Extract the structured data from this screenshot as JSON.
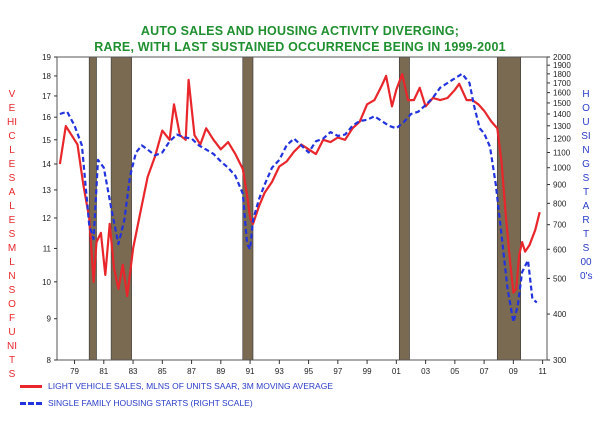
{
  "chart_data": {
    "type": "line",
    "title": [
      "AUTO SALES AND HOUSING ACTIVITY DIVERGING;",
      "RARE, WITH LAST SUSTAINED OCCURRENCE BEING IN 1999-2001"
    ],
    "ylabel_left": "VEHICLE SALES MLNS OF UNITS",
    "ylabel_right": "HOUSING STARTS 000's",
    "x_ticks": [
      "79",
      "81",
      "83",
      "85",
      "87",
      "89",
      "91",
      "93",
      "95",
      "97",
      "99",
      "01",
      "03",
      "05",
      "07",
      "09",
      "11"
    ],
    "x_tick_values": [
      1979,
      1981,
      1983,
      1985,
      1987,
      1989,
      1991,
      1993,
      1995,
      1997,
      1999,
      2001,
      2003,
      2005,
      2007,
      2009,
      2011
    ],
    "xlim": [
      1977.8,
      2011.3
    ],
    "y_left": {
      "ticks": [
        8,
        9,
        10,
        11,
        12,
        13,
        14,
        15,
        16,
        17,
        18,
        19
      ],
      "lim": [
        8,
        19
      ],
      "scale": "log"
    },
    "y_right": {
      "ticks": [
        300,
        400,
        500,
        600,
        700,
        800,
        900,
        1000,
        1100,
        1200,
        1300,
        1400,
        1500,
        1600,
        1700,
        1800,
        1900,
        2000
      ],
      "lim": [
        300,
        2000
      ],
      "scale": "log"
    },
    "recessions": [
      [
        1980.0,
        1980.5
      ],
      [
        1981.5,
        1982.9
      ],
      [
        1990.5,
        1991.2
      ],
      [
        2001.2,
        2001.9
      ],
      [
        2007.9,
        2009.5
      ]
    ],
    "series": [
      {
        "name": "LIGHT VEHICLE SALES, MLNS OF UNITS SAAR, 3M MOVING AVERAGE",
        "axis": "left",
        "color": "#e8262b",
        "style": "solid",
        "x": [
          1978.0,
          1978.4,
          1978.8,
          1979.2,
          1979.6,
          1980.0,
          1980.3,
          1980.5,
          1980.8,
          1981.1,
          1981.4,
          1981.7,
          1982.0,
          1982.3,
          1982.6,
          1983.0,
          1983.5,
          1984.0,
          1984.5,
          1985.0,
          1985.5,
          1985.8,
          1986.2,
          1986.6,
          1986.8,
          1987.2,
          1987.6,
          1988.0,
          1988.5,
          1989.0,
          1989.5,
          1990.0,
          1990.5,
          1990.8,
          1991.0,
          1991.2,
          1991.6,
          1992.0,
          1992.5,
          1993.0,
          1993.5,
          1994.0,
          1994.5,
          1995.0,
          1995.5,
          1996.0,
          1996.5,
          1997.0,
          1997.5,
          1998.0,
          1998.5,
          1999.0,
          1999.5,
          2000.0,
          2000.3,
          2000.7,
          2001.0,
          2001.4,
          2001.8,
          2002.2,
          2002.6,
          2003.0,
          2003.5,
          2004.0,
          2004.5,
          2005.0,
          2005.3,
          2005.8,
          2006.2,
          2006.6,
          2007.0,
          2007.5,
          2007.9,
          2008.2,
          2008.5,
          2008.8,
          2009.0,
          2009.2,
          2009.4,
          2009.6,
          2009.8,
          2010.1,
          2010.5,
          2010.8
        ],
        "y": [
          14.0,
          15.6,
          15.2,
          14.8,
          13.2,
          12.0,
          10.0,
          11.2,
          11.5,
          10.2,
          11.8,
          10.4,
          9.8,
          10.5,
          9.6,
          11.0,
          12.2,
          13.5,
          14.3,
          15.4,
          15.0,
          16.6,
          15.2,
          15.0,
          17.8,
          15.2,
          14.8,
          15.5,
          15.0,
          14.6,
          14.9,
          14.4,
          13.8,
          12.8,
          12.0,
          11.8,
          12.4,
          12.9,
          13.3,
          13.9,
          14.1,
          14.5,
          14.8,
          14.6,
          14.4,
          15.0,
          14.9,
          15.1,
          15.0,
          15.5,
          15.8,
          16.6,
          16.8,
          17.5,
          18.0,
          16.5,
          17.3,
          18.1,
          16.8,
          16.8,
          17.4,
          16.5,
          16.9,
          16.8,
          16.9,
          17.3,
          17.6,
          16.8,
          16.8,
          16.6,
          16.3,
          15.8,
          15.5,
          14.0,
          12.0,
          10.5,
          9.7,
          9.8,
          10.8,
          11.2,
          10.9,
          11.1,
          11.6,
          12.2
        ]
      },
      {
        "name": "SINGLE FAMILY HOUSING STARTS (RIGHT SCALE)",
        "axis": "right",
        "color": "#2233dd",
        "style": "dashed",
        "x": [
          1978.0,
          1978.5,
          1979.0,
          1979.5,
          1980.0,
          1980.3,
          1980.6,
          1981.0,
          1981.5,
          1982.0,
          1982.4,
          1982.8,
          1983.2,
          1983.6,
          1984.0,
          1984.5,
          1985.0,
          1985.5,
          1986.0,
          1986.5,
          1987.0,
          1987.5,
          1988.0,
          1988.5,
          1989.0,
          1989.5,
          1990.0,
          1990.5,
          1990.8,
          1991.0,
          1991.2,
          1991.6,
          1992.0,
          1992.5,
          1993.0,
          1993.5,
          1994.0,
          1994.5,
          1995.0,
          1995.5,
          1996.0,
          1996.5,
          1997.0,
          1997.5,
          1998.0,
          1998.5,
          1999.0,
          1999.5,
          2000.0,
          2000.5,
          2001.0,
          2001.5,
          2002.0,
          2002.5,
          2003.0,
          2003.5,
          2004.0,
          2004.5,
          2005.0,
          2005.5,
          2006.0,
          2006.3,
          2006.7,
          2007.0,
          2007.4,
          2007.8,
          2008.2,
          2008.6,
          2009.0,
          2009.3,
          2009.6,
          2010.0,
          2010.3,
          2010.6
        ],
        "y": [
          1400,
          1420,
          1300,
          1150,
          700,
          640,
          1050,
          1000,
          780,
          620,
          720,
          950,
          1100,
          1150,
          1120,
          1080,
          1100,
          1180,
          1230,
          1210,
          1200,
          1150,
          1120,
          1090,
          1040,
          1000,
          950,
          850,
          620,
          600,
          720,
          820,
          900,
          1000,
          1050,
          1150,
          1200,
          1150,
          1100,
          1180,
          1200,
          1250,
          1220,
          1230,
          1300,
          1340,
          1350,
          1380,
          1340,
          1300,
          1280,
          1330,
          1400,
          1420,
          1480,
          1550,
          1650,
          1700,
          1750,
          1800,
          1700,
          1480,
          1280,
          1240,
          1140,
          900,
          650,
          470,
          380,
          420,
          520,
          560,
          440,
          430
        ]
      }
    ]
  }
}
